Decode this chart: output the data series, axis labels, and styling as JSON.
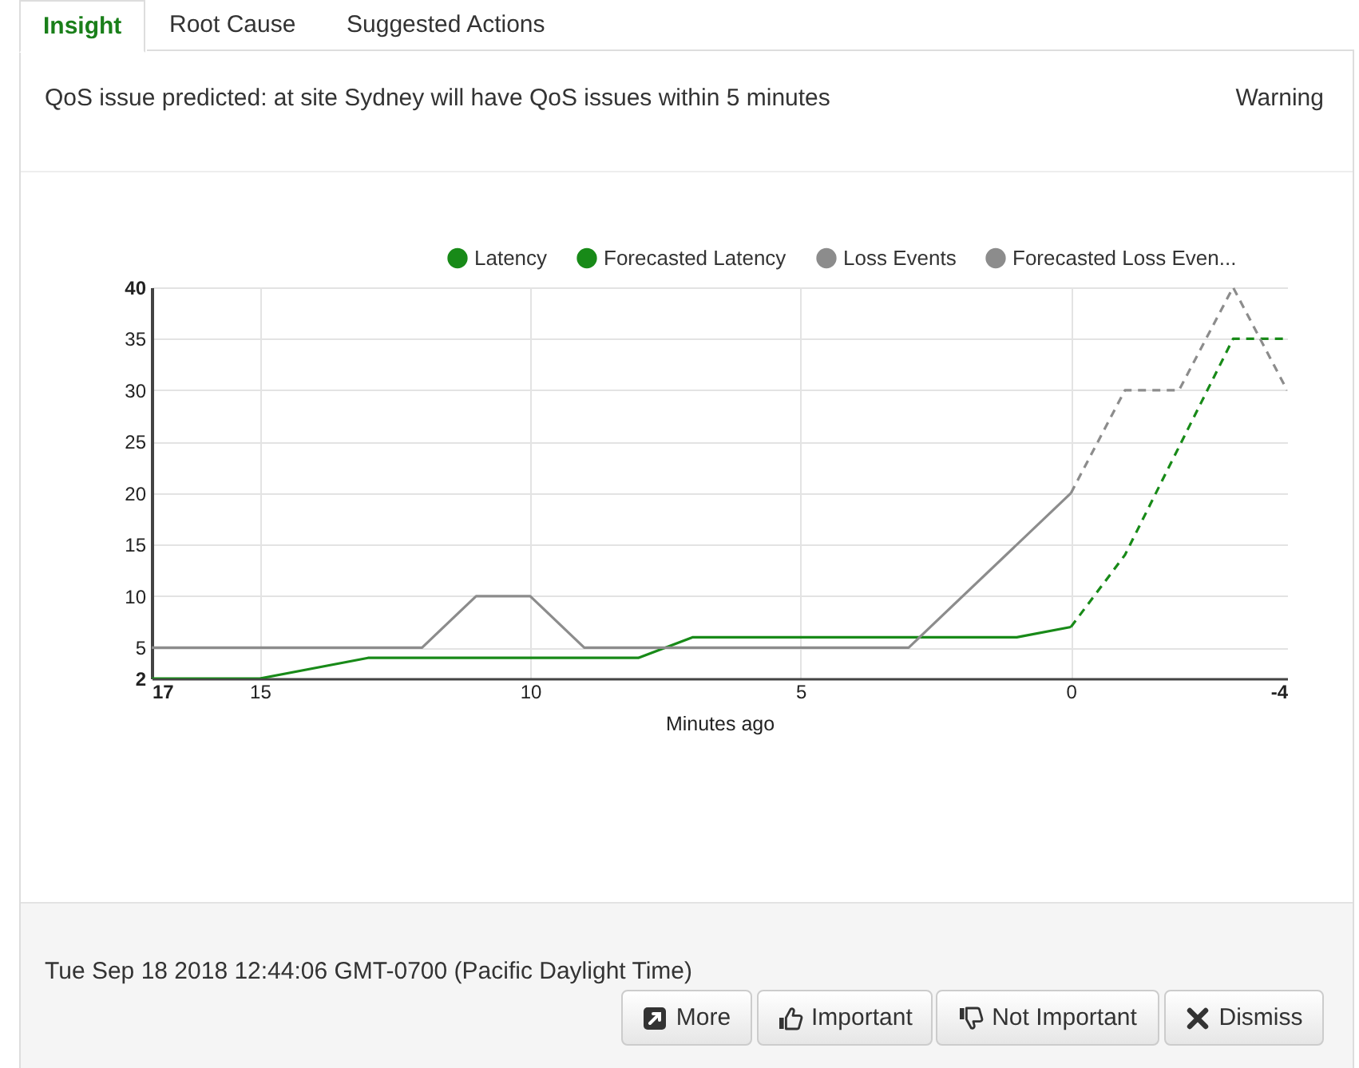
{
  "chart_data": {
    "type": "line",
    "title": "QoS issue predicted: at site Sydney will have QoS issues within 5 minutes",
    "annotations": [
      "Insight",
      "Root Cause",
      "Suggested Actions",
      "Warning",
      "Tue Sep 18 2018 12:44:06 GMT-0700 (Pacific Daylight Time)",
      "More",
      "Important",
      "Not Important",
      "Dismiss"
    ],
    "xlabel": "Minutes ago",
    "xlim": [
      17,
      -4
    ],
    "xticks": [
      17,
      15,
      10,
      5,
      0,
      -4
    ],
    "ylim": [
      2,
      40
    ],
    "yticks": [
      2,
      5,
      10,
      15,
      20,
      25,
      30,
      35,
      40
    ],
    "grid": true,
    "legend": "top right",
    "series": [
      {
        "name": "Latency",
        "color": "#188a18",
        "line_style": "solid",
        "x": [
          17,
          15,
          13,
          8,
          7,
          1,
          0
        ],
        "values": [
          2,
          2,
          4,
          4,
          6,
          6,
          7
        ]
      },
      {
        "name": "Forecasted Latency",
        "color": "#188a18",
        "line_style": "dashed",
        "x": [
          0,
          -1,
          -3,
          -4
        ],
        "values": [
          7,
          14,
          35,
          35
        ]
      },
      {
        "name": "Loss Events",
        "color": "#8c8c8c",
        "line_style": "solid",
        "x": [
          17,
          12,
          11,
          10,
          9,
          3,
          0
        ],
        "values": [
          5,
          5,
          10,
          10,
          5,
          5,
          20
        ]
      },
      {
        "name": "Forecasted Loss Even...",
        "color": "#8c8c8c",
        "line_style": "dashed",
        "x": [
          0,
          -1,
          -2,
          -3,
          -4
        ],
        "values": [
          20,
          30,
          30,
          40,
          30
        ]
      }
    ]
  }
}
